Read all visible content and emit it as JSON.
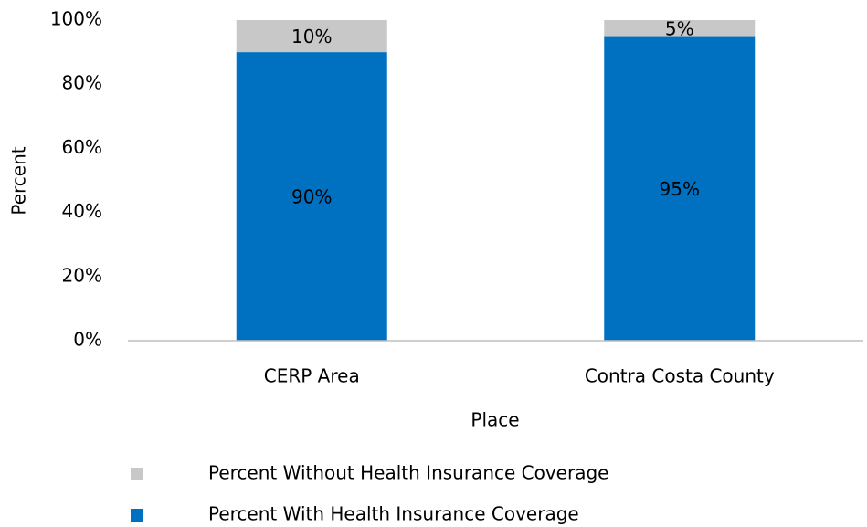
{
  "chart_data": {
    "type": "stacked_bar",
    "x_label": "Place",
    "y_label": "Percent",
    "categories": [
      "CERP Area",
      "Contra Costa County"
    ],
    "series": [
      {
        "name": "Percent With Health Insurance Coverage",
        "color": "#0070c0",
        "values": [
          90,
          95
        ],
        "value_labels": [
          "90%",
          "95%"
        ]
      },
      {
        "name": "Percent Without Health Insurance Coverage",
        "color": "#c8c8c8",
        "values": [
          10,
          5
        ],
        "value_labels": [
          "10%",
          "5%"
        ]
      }
    ],
    "ylim": [
      0,
      100
    ],
    "yticks": [
      {
        "value": 0,
        "label": "0%"
      },
      {
        "value": 20,
        "label": "20%"
      },
      {
        "value": 40,
        "label": "40%"
      },
      {
        "value": 60,
        "label": "60%"
      },
      {
        "value": 80,
        "label": "80%"
      },
      {
        "value": 100,
        "label": "100%"
      }
    ],
    "grid": false,
    "legend": "bottom"
  }
}
